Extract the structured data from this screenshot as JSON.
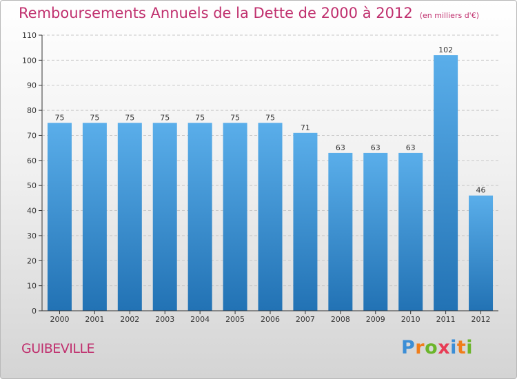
{
  "header": {
    "title": "Remboursements Annuels de la Dette de 2000 à 2012",
    "subtitle": "(en milliers d'€)"
  },
  "footer": {
    "town": "GUIBEVILLE",
    "logo_letters": [
      "P",
      "r",
      "o",
      "x",
      "i",
      "t",
      "i"
    ],
    "logo_colors": [
      "#3b8ed6",
      "#f07d1a",
      "#6bb52a",
      "#e83c55",
      "#3b8ed6",
      "#f07d1a",
      "#6bb52a"
    ]
  },
  "colors": {
    "title": "#c0306e",
    "bar_top": "#5aaeea",
    "bar_bottom": "#2272b4",
    "axis": "#333333",
    "grid": "#c8c8c8"
  },
  "chart_data": {
    "type": "bar",
    "title": "Remboursements Annuels de la Dette de 2000 à 2012",
    "subtitle": "(en milliers d'€)",
    "categories": [
      "2000",
      "2001",
      "2002",
      "2003",
      "2004",
      "2005",
      "2006",
      "2007",
      "2008",
      "2009",
      "2010",
      "2011",
      "2012"
    ],
    "values": [
      75,
      75,
      75,
      75,
      75,
      75,
      75,
      71,
      63,
      63,
      63,
      102,
      46
    ],
    "ylim": [
      0,
      110
    ],
    "yticks": [
      0,
      10,
      20,
      30,
      40,
      50,
      60,
      70,
      80,
      90,
      100,
      110
    ],
    "grid": true,
    "xlabel": "",
    "ylabel": ""
  }
}
